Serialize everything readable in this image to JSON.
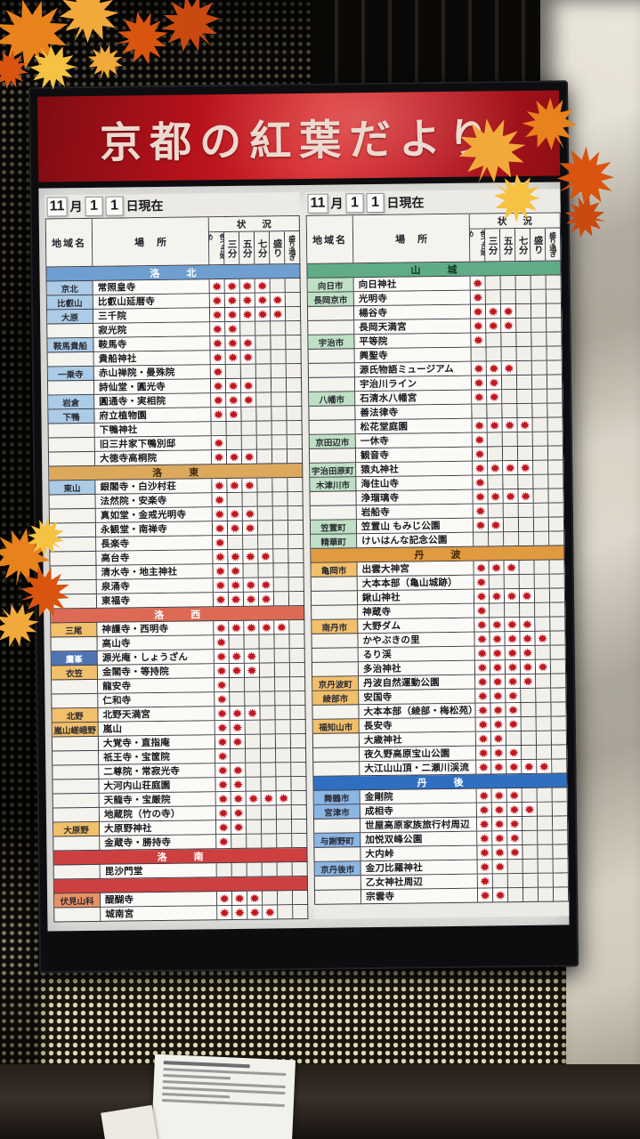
{
  "title": "京都の紅葉だより",
  "date": {
    "month": "11",
    "day": "11",
    "month_suffix": "月",
    "day_suffix": "日現在"
  },
  "columns": {
    "region": "地域名",
    "place": "場所",
    "status": "状況",
    "stages": [
      "色づき始め",
      "三分",
      "五分",
      "七分",
      "盛り",
      "盛り過ぎ"
    ]
  },
  "colors": {
    "banner_red": "#b5121b",
    "leaf_mark": "#c2161f",
    "label_blue": "#abcbe6",
    "label_dark_blue": "#4f74b4",
    "label_orange": "#f2c06a",
    "label_salmon": "#e89263",
    "label_green": "#bfe0c5",
    "label_tango_blue": "#8cb6e4",
    "decor_leaves": [
      "#e8821c",
      "#f2a93c",
      "#d8540f",
      "#f5c242",
      "#c84a10"
    ]
  },
  "panels": [
    {
      "id": "left",
      "sections": [
        {
          "name": "洛北",
          "color": "#6f9fd0",
          "text": "#ffffff",
          "rows": [
            {
              "region": "京北",
              "region_bg": "#abcbe6",
              "place": "常照皇寺",
              "status": 4
            },
            {
              "region": "比叡山",
              "region_bg": "#abcbe6",
              "place": "比叡山延暦寺",
              "status": 5
            },
            {
              "region": "大原",
              "region_bg": "#abcbe6",
              "place": "三千院",
              "status": 5
            },
            {
              "region": "",
              "region_bg": "",
              "place": "寂光院",
              "status": 2
            },
            {
              "region": "鞍馬貴船",
              "region_bg": "#abcbe6",
              "place": "鞍馬寺",
              "status": 3
            },
            {
              "region": "",
              "region_bg": "",
              "place": "貴船神社",
              "status": 3
            },
            {
              "region": "一乗寺",
              "region_bg": "#abcbe6",
              "place": "赤山禅院・曼殊院",
              "status": 1
            },
            {
              "region": "",
              "region_bg": "",
              "place": "詩仙堂・圓光寺",
              "status": 3
            },
            {
              "region": "岩倉",
              "region_bg": "#abcbe6",
              "place": "圓通寺・実相院",
              "status": 3
            },
            {
              "region": "下鴨",
              "region_bg": "#abcbe6",
              "place": "府立植物園",
              "status": 2
            },
            {
              "region": "",
              "region_bg": "",
              "place": "下鴨神社",
              "status": 0
            },
            {
              "region": "",
              "region_bg": "",
              "place": "旧三井家下鴨別邸",
              "status": 1
            },
            {
              "region": "",
              "region_bg": "",
              "place": "大徳寺高桐院",
              "status": 3
            }
          ]
        },
        {
          "name": "洛東",
          "color": "#dba85c",
          "text": "#3a2a10",
          "rows": [
            {
              "region": "東山",
              "region_bg": "#abcbe6",
              "place": "銀閣寺・白沙村荘",
              "status": 3
            },
            {
              "region": "",
              "region_bg": "",
              "place": "法然院・安楽寺",
              "status": 1
            },
            {
              "region": "",
              "region_bg": "",
              "place": "真如堂・金戒光明寺",
              "status": 3
            },
            {
              "region": "",
              "region_bg": "",
              "place": "永観堂・南禅寺",
              "status": 3
            },
            {
              "region": "",
              "region_bg": "",
              "place": "長楽寺",
              "status": 1
            },
            {
              "region": "",
              "region_bg": "",
              "place": "高台寺",
              "status": 4
            },
            {
              "region": "",
              "region_bg": "",
              "place": "清水寺・地主神社",
              "status": 2
            },
            {
              "region": "",
              "region_bg": "",
              "place": "泉涌寺",
              "status": 4
            },
            {
              "region": "",
              "region_bg": "",
              "place": "東福寺",
              "status": 4
            }
          ]
        },
        {
          "name": "洛西",
          "color": "#dd6a55",
          "text": "#ffffff",
          "rows": [
            {
              "region": "三尾",
              "region_bg": "#f2c06a",
              "place": "神護寺・西明寺",
              "status": 5
            },
            {
              "region": "",
              "region_bg": "",
              "place": "高山寺",
              "status": 1
            },
            {
              "region": "鷹峯",
              "region_bg": "#4f74b4",
              "place": "源光庵・しょうざん",
              "status": 3
            },
            {
              "region": "衣笠",
              "region_bg": "#f2c06a",
              "place": "金閣寺・等持院",
              "status": 3
            },
            {
              "region": "",
              "region_bg": "",
              "place": "龍安寺",
              "status": 1
            },
            {
              "region": "",
              "region_bg": "",
              "place": "仁和寺",
              "status": 1
            },
            {
              "region": "北野",
              "region_bg": "#f2c06a",
              "place": "北野天満宮",
              "status": 3
            },
            {
              "region": "嵐山嵯峨野",
              "region_bg": "#f2c06a",
              "place": "嵐山",
              "status": 2
            },
            {
              "region": "",
              "region_bg": "",
              "place": "大覚寺・直指庵",
              "status": 2
            },
            {
              "region": "",
              "region_bg": "",
              "place": "祇王寺・宝筐院",
              "status": 1
            },
            {
              "region": "",
              "region_bg": "",
              "place": "二尊院・常寂光寺",
              "status": 2
            },
            {
              "region": "",
              "region_bg": "",
              "place": "大河内山荘庭園",
              "status": 2
            },
            {
              "region": "",
              "region_bg": "",
              "place": "天龍寺・宝厳院",
              "status": 5
            },
            {
              "region": "",
              "region_bg": "",
              "place": "地蔵院（竹の寺）",
              "status": 2
            },
            {
              "region": "大原野",
              "region_bg": "#f2c06a",
              "place": "大原野神社",
              "status": 2
            },
            {
              "region": "",
              "region_bg": "",
              "place": "金蔵寺・勝持寺",
              "status": 1
            }
          ]
        },
        {
          "name": "洛南",
          "color": "#ce4040",
          "text": "#ffffff",
          "rows": [
            {
              "region": "",
              "region_bg": "",
              "place": "毘沙門堂",
              "status": 0
            }
          ]
        },
        {
          "name": "",
          "color": "#ce4040",
          "text": "#ffffff",
          "rows": [
            {
              "region": "伏見山科",
              "region_bg": "#e89263",
              "place": "醍醐寺",
              "status": 3
            },
            {
              "region": "",
              "region_bg": "",
              "place": "城南宮",
              "status": 4
            }
          ]
        }
      ]
    },
    {
      "id": "right",
      "sections": [
        {
          "name": "山城",
          "color": "#5fac85",
          "text": "#103522",
          "rows": [
            {
              "region": "向日市",
              "region_bg": "#bfe0c5",
              "place": "向日神社",
              "status": 1
            },
            {
              "region": "長岡京市",
              "region_bg": "#bfe0c5",
              "place": "光明寺",
              "status": 1
            },
            {
              "region": "",
              "region_bg": "",
              "place": "楊谷寺",
              "status": 3
            },
            {
              "region": "",
              "region_bg": "",
              "place": "長岡天満宮",
              "status": 3
            },
            {
              "region": "宇治市",
              "region_bg": "#bfe0c5",
              "place": "平等院",
              "status": 1
            },
            {
              "region": "",
              "region_bg": "",
              "place": "興聖寺",
              "status": 0
            },
            {
              "region": "",
              "region_bg": "",
              "place": "源氏物語ミュージアム",
              "status": 3
            },
            {
              "region": "",
              "region_bg": "",
              "place": "宇治川ライン",
              "status": 2
            },
            {
              "region": "八幡市",
              "region_bg": "#bfe0c5",
              "place": "石清水八幡宮",
              "status": 2
            },
            {
              "region": "",
              "region_bg": "",
              "place": "善法律寺",
              "status": 0
            },
            {
              "region": "",
              "region_bg": "",
              "place": "松花堂庭園",
              "status": 4
            },
            {
              "region": "京田辺市",
              "region_bg": "#bfe0c5",
              "place": "一休寺",
              "status": 1
            },
            {
              "region": "",
              "region_bg": "",
              "place": "観音寺",
              "status": 1
            },
            {
              "region": "宇治田原町",
              "region_bg": "#bfe0c5",
              "place": "猿丸神社",
              "status": 4
            },
            {
              "region": "木津川市",
              "region_bg": "#bfe0c5",
              "place": "海住山寺",
              "status": 1
            },
            {
              "region": "",
              "region_bg": "",
              "place": "浄瑠璃寺",
              "status": 4
            },
            {
              "region": "",
              "region_bg": "",
              "place": "岩船寺",
              "status": 1
            },
            {
              "region": "笠置町",
              "region_bg": "#bfe0c5",
              "place": "笠置山 もみじ公園",
              "status": 2
            },
            {
              "region": "精華町",
              "region_bg": "#bfe0c5",
              "place": "けいはんな記念公園",
              "status": 0
            }
          ]
        },
        {
          "name": "丹波",
          "color": "#e09a40",
          "text": "#3a2708",
          "rows": [
            {
              "region": "亀岡市",
              "region_bg": "#f2c06a",
              "place": "出雲大神宮",
              "status": 3
            },
            {
              "region": "",
              "region_bg": "",
              "place": "大本本部（亀山城跡）",
              "status": 1
            },
            {
              "region": "",
              "region_bg": "",
              "place": "鍬山神社",
              "status": 4
            },
            {
              "region": "",
              "region_bg": "",
              "place": "神蔵寺",
              "status": 1
            },
            {
              "region": "南丹市",
              "region_bg": "#f2c06a",
              "place": "大野ダム",
              "status": 4
            },
            {
              "region": "",
              "region_bg": "",
              "place": "かやぶきの里",
              "status": 5
            },
            {
              "region": "",
              "region_bg": "",
              "place": "るり渓",
              "status": 4
            },
            {
              "region": "",
              "region_bg": "",
              "place": "多治神社",
              "status": 5
            },
            {
              "region": "京丹波町",
              "region_bg": "#f2c06a",
              "place": "丹波自然運動公園",
              "status": 4
            },
            {
              "region": "綾部市",
              "region_bg": "#f2c06a",
              "place": "安国寺",
              "status": 3
            },
            {
              "region": "",
              "region_bg": "",
              "place": "大本本部（綾部・梅松苑）",
              "status": 3
            },
            {
              "region": "福知山市",
              "region_bg": "#f2c06a",
              "place": "長安寺",
              "status": 3
            },
            {
              "region": "",
              "region_bg": "",
              "place": "大歳神社",
              "status": 2
            },
            {
              "region": "",
              "region_bg": "",
              "place": "夜久野高原宝山公園",
              "status": 3
            },
            {
              "region": "",
              "region_bg": "",
              "place": "大江山山頂・二瀬川渓流",
              "status": 5
            }
          ]
        },
        {
          "name": "丹後",
          "color": "#2f6fc2",
          "text": "#ffffff",
          "rows": [
            {
              "region": "舞鶴市",
              "region_bg": "#8cb6e4",
              "place": "金剛院",
              "status": 3
            },
            {
              "region": "宮津市",
              "region_bg": "#8cb6e4",
              "place": "成相寺",
              "status": 4
            },
            {
              "region": "",
              "region_bg": "",
              "place": "世屋高原家族旅行村周辺",
              "status": 3
            },
            {
              "region": "与謝野町",
              "region_bg": "#8cb6e4",
              "place": "加悦双峰公園",
              "status": 3
            },
            {
              "region": "",
              "region_bg": "",
              "place": "大内峠",
              "status": 3
            },
            {
              "region": "京丹後市",
              "region_bg": "#8cb6e4",
              "place": "金刀比羅神社",
              "status": 2
            },
            {
              "region": "",
              "region_bg": "",
              "place": "乙女神社周辺",
              "status": 1
            },
            {
              "region": "",
              "region_bg": "",
              "place": "宗雲寺",
              "status": 2
            }
          ]
        }
      ]
    }
  ]
}
